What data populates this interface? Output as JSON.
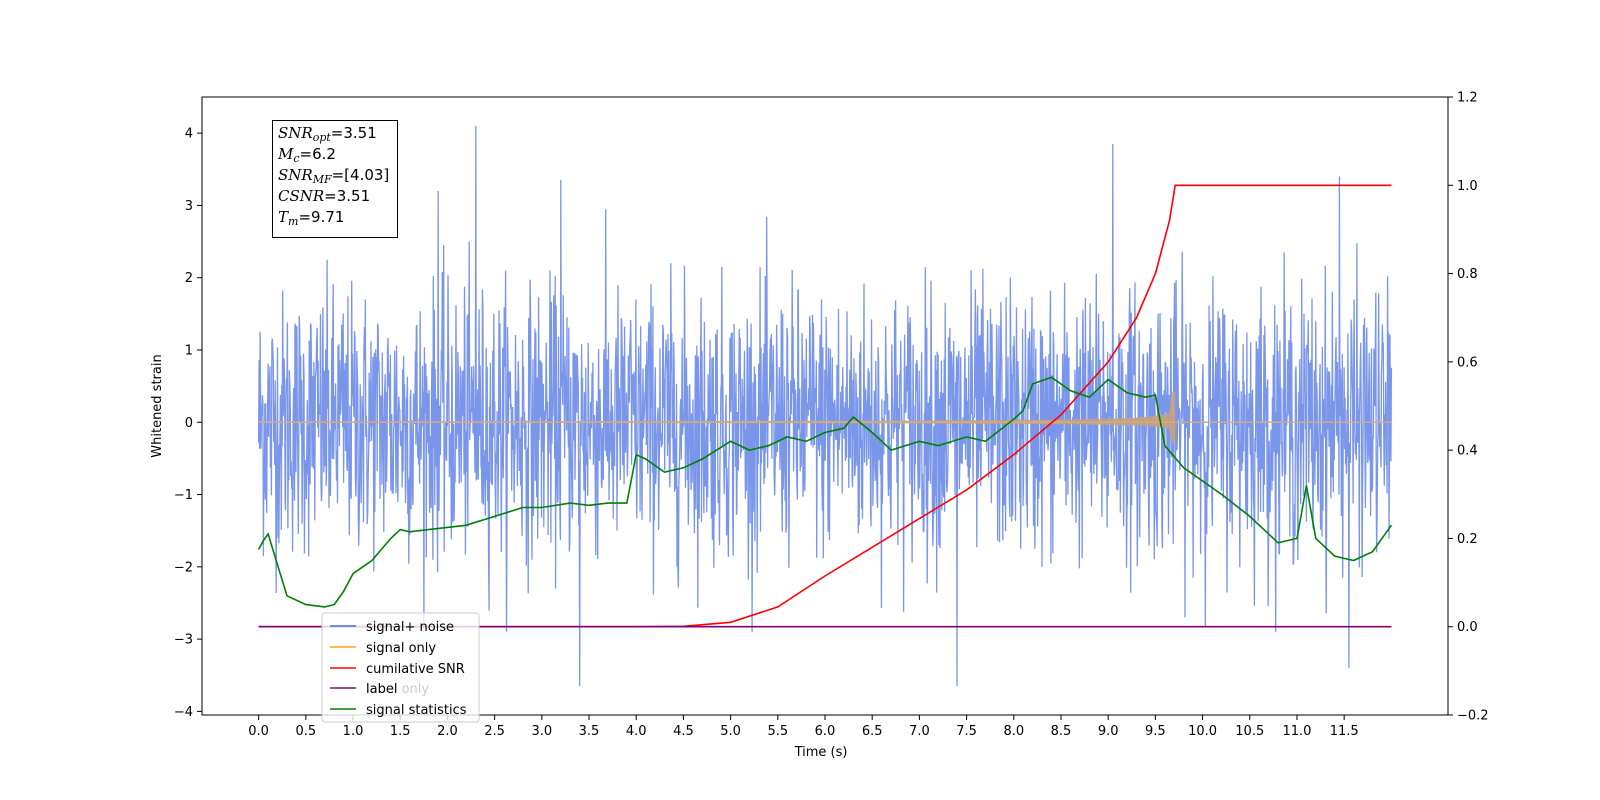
{
  "chart_data": {
    "type": "line",
    "xlabel": "Time (s)",
    "ylabel": "Whitened strain",
    "xlim": [
      -0.6,
      12.6
    ],
    "ylim": [
      -4.05,
      4.5
    ],
    "y2lim": [
      -0.2,
      1.2
    ],
    "x_ticks": [
      "0.0",
      "0.5",
      "1.0",
      "1.5",
      "2.0",
      "2.5",
      "3.0",
      "3.5",
      "4.0",
      "4.5",
      "5.0",
      "5.5",
      "6.0",
      "6.5",
      "7.0",
      "7.5",
      "8.0",
      "8.5",
      "9.0",
      "9.5",
      "10.0",
      "10.5",
      "11.0",
      "11.5"
    ],
    "y_ticks": [
      "−4",
      "−3",
      "−2",
      "−1",
      "0",
      "1",
      "2",
      "3",
      "4"
    ],
    "y2_ticks": [
      "−0.2",
      "0.0",
      "0.2",
      "0.4",
      "0.6",
      "0.8",
      "1.0",
      "1.2"
    ],
    "legend_position": "lower-left",
    "series": [
      {
        "name": "signal+ noise",
        "color": "#4169e1",
        "noise_std": 0.9,
        "x_range": [
          0.0,
          12.0
        ],
        "peaks": [
          [
            2.3,
            4.1
          ],
          [
            9.05,
            3.85
          ],
          [
            11.45,
            3.4
          ],
          [
            3.4,
            -3.65
          ],
          [
            7.4,
            -3.65
          ],
          [
            11.55,
            -3.4
          ],
          [
            1.9,
            3.2
          ],
          [
            3.2,
            3.35
          ]
        ]
      },
      {
        "name": "signal only",
        "color": "#ffa500",
        "chirp_end": 9.71
      },
      {
        "name": "cumilative SNR",
        "color": "#ff0000",
        "axis": "right",
        "x": [
          0.0,
          4.0,
          4.5,
          5.0,
          5.5,
          6.0,
          6.5,
          7.0,
          7.5,
          8.0,
          8.5,
          9.0,
          9.3,
          9.5,
          9.65,
          9.71,
          12.0
        ],
        "values": [
          0.0,
          0.0,
          0.001,
          0.01,
          0.045,
          0.115,
          0.18,
          0.245,
          0.31,
          0.39,
          0.48,
          0.6,
          0.7,
          0.8,
          0.92,
          1.0,
          1.0
        ]
      },
      {
        "name": "label",
        "color": "#800080",
        "axis": "right",
        "x": [
          0.0,
          12.0
        ],
        "values": [
          0.0,
          0.0
        ]
      },
      {
        "name": "signal statistics",
        "color": "#008000",
        "axis": "right",
        "x": [
          0.0,
          0.05,
          0.1,
          0.3,
          0.5,
          0.7,
          0.8,
          0.9,
          1.0,
          1.2,
          1.4,
          1.5,
          1.6,
          1.8,
          2.0,
          2.2,
          2.5,
          2.8,
          3.0,
          3.3,
          3.5,
          3.7,
          3.9,
          4.0,
          4.1,
          4.3,
          4.5,
          4.7,
          5.0,
          5.2,
          5.4,
          5.6,
          5.8,
          6.0,
          6.2,
          6.3,
          6.5,
          6.7,
          7.0,
          7.2,
          7.5,
          7.7,
          8.0,
          8.1,
          8.2,
          8.4,
          8.6,
          8.8,
          9.0,
          9.2,
          9.4,
          9.5,
          9.6,
          9.8,
          10.0,
          10.2,
          10.5,
          10.8,
          11.0,
          11.1,
          11.2,
          11.4,
          11.6,
          11.8,
          12.0
        ],
        "values": [
          0.175,
          0.195,
          0.21,
          0.07,
          0.05,
          0.045,
          0.05,
          0.08,
          0.12,
          0.15,
          0.2,
          0.22,
          0.215,
          0.22,
          0.225,
          0.23,
          0.25,
          0.27,
          0.27,
          0.28,
          0.275,
          0.28,
          0.28,
          0.39,
          0.38,
          0.35,
          0.36,
          0.38,
          0.42,
          0.4,
          0.41,
          0.43,
          0.42,
          0.44,
          0.45,
          0.475,
          0.44,
          0.4,
          0.42,
          0.41,
          0.43,
          0.42,
          0.47,
          0.49,
          0.55,
          0.565,
          0.535,
          0.52,
          0.56,
          0.53,
          0.52,
          0.525,
          0.41,
          0.36,
          0.33,
          0.3,
          0.25,
          0.19,
          0.2,
          0.32,
          0.2,
          0.16,
          0.15,
          0.17,
          0.23
        ]
      }
    ]
  },
  "legend": [
    {
      "label": "signal+ noise",
      "color": "#4169e1"
    },
    {
      "label": "signal only",
      "color": "#ffa500"
    },
    {
      "label": "cumilative SNR",
      "color": "#ff0000"
    },
    {
      "label": "label",
      "color": "#800080"
    },
    {
      "label": "label only",
      "color": "#cccccc"
    },
    {
      "label": "signal statistics",
      "color": "#008000"
    }
  ],
  "infobox": {
    "snr_opt": {
      "sym": "SNR",
      "sub": "opt",
      "val": "=3.51"
    },
    "mc": {
      "sym": "M",
      "sub": "c",
      "val": "=6.2"
    },
    "snr_mf": {
      "sym": "SNR",
      "sub": "MF",
      "val": "=[4.03]"
    },
    "csnr": {
      "sym": "CSNR",
      "val": "=3.51"
    },
    "tm": {
      "sym": "T",
      "sub": "m",
      "val": "=9.71"
    }
  }
}
